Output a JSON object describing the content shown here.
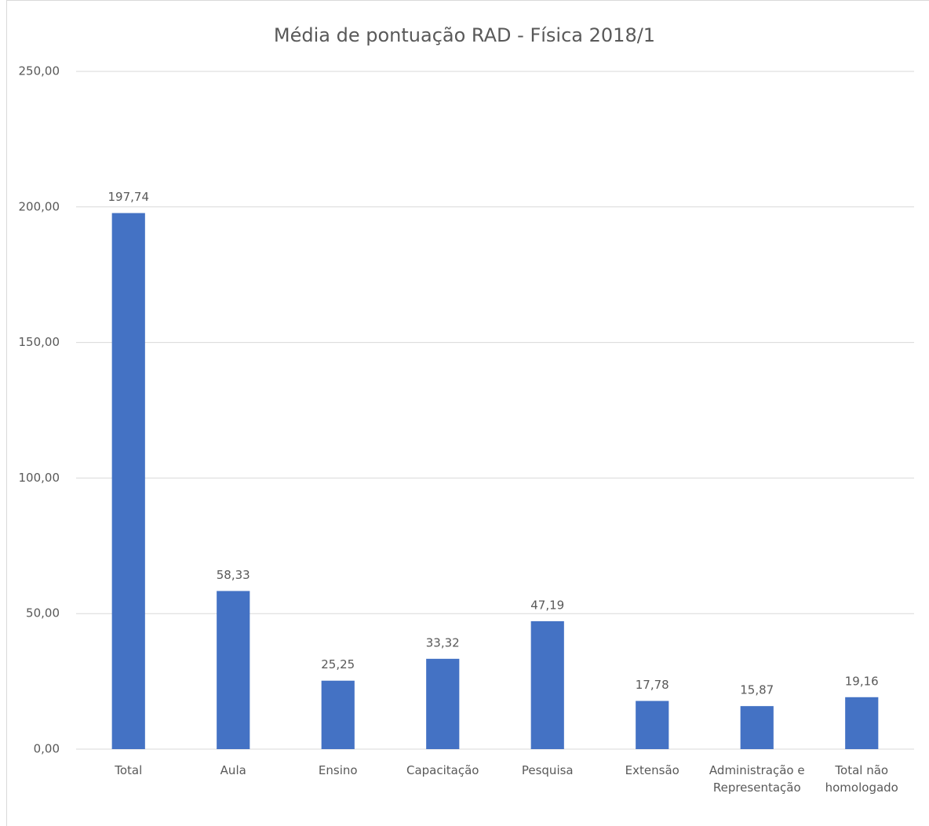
{
  "chart_data": {
    "type": "bar",
    "title": "Média de pontuação RAD - Física 2018/1",
    "categories": [
      "Total",
      "Aula",
      "Ensino",
      "Capacitação",
      "Pesquisa",
      "Extensão",
      "Administração e Representação",
      "Total não homologado"
    ],
    "values": [
      197.74,
      58.33,
      25.25,
      33.32,
      47.19,
      17.78,
      15.87,
      19.16
    ],
    "value_labels": [
      "197,74",
      "58,33",
      "25,25",
      "33,32",
      "47,19",
      "17,78",
      "15,87",
      "19,16"
    ],
    "color": "#4472c4",
    "ylim": [
      0,
      250
    ],
    "yticks": [
      {
        "value": 0,
        "label": "0,00"
      },
      {
        "value": 50,
        "label": "50,00"
      },
      {
        "value": 100,
        "label": "100,00"
      },
      {
        "value": 150,
        "label": "150,00"
      },
      {
        "value": 200,
        "label": "200,00"
      },
      {
        "value": 250,
        "label": "250,00"
      }
    ],
    "grid": true
  }
}
